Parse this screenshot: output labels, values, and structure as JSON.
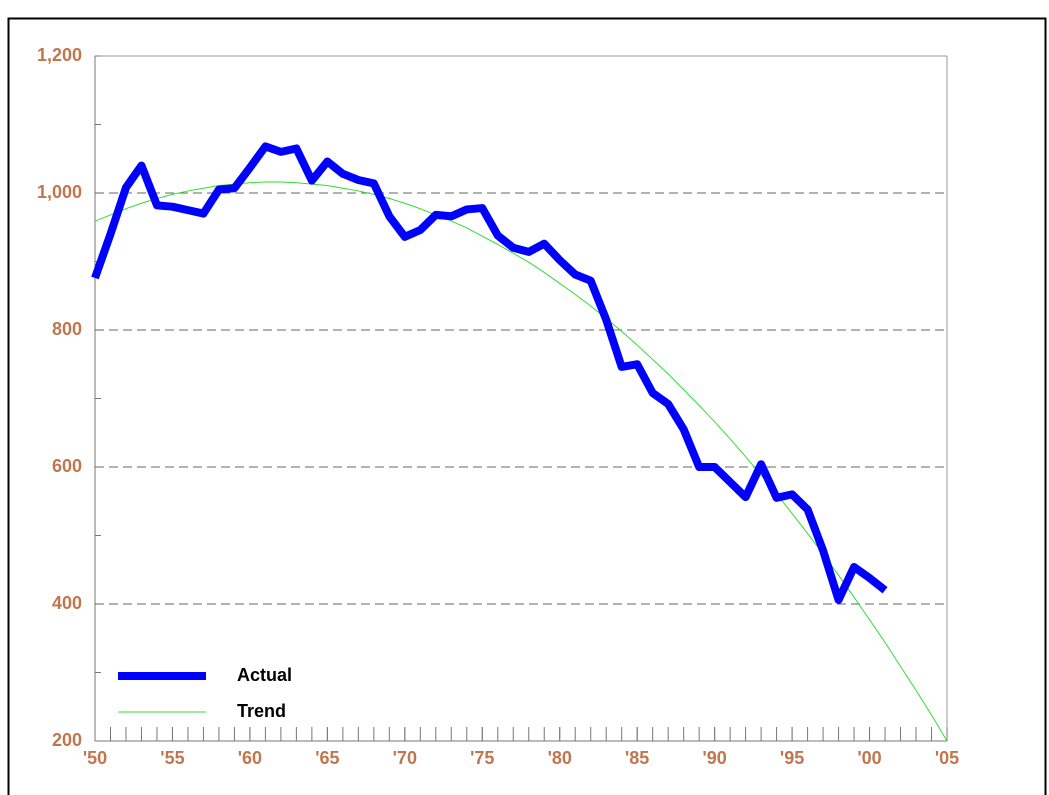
{
  "chart_data": {
    "type": "line",
    "series": [
      {
        "name": "Actual",
        "color": "#0000ff",
        "width": 8,
        "x": [
          1950,
          1951,
          1952,
          1953,
          1954,
          1955,
          1956,
          1957,
          1958,
          1959,
          1960,
          1961,
          1962,
          1963,
          1964,
          1965,
          1966,
          1967,
          1968,
          1969,
          1970,
          1971,
          1972,
          1973,
          1974,
          1975,
          1976,
          1977,
          1978,
          1979,
          1980,
          1981,
          1982,
          1983,
          1984,
          1985,
          1986,
          1987,
          1988,
          1989,
          1990,
          1991,
          1992,
          1993,
          1994,
          1995,
          1996,
          1997,
          1998,
          1999,
          2000,
          2001
        ],
        "values": [
          876,
          940,
          1008,
          1040,
          982,
          980,
          975,
          970,
          1005,
          1007,
          1037,
          1068,
          1060,
          1065,
          1018,
          1046,
          1028,
          1019,
          1014,
          966,
          936,
          946,
          968,
          966,
          976,
          978,
          938,
          920,
          914,
          926,
          902,
          881,
          872,
          815,
          746,
          750,
          708,
          692,
          655,
          600,
          600,
          578,
          556,
          604,
          555,
          560,
          538,
          478,
          406,
          454,
          438,
          420
        ]
      },
      {
        "name": "Trend",
        "color": "#33dd33",
        "width": 1,
        "x": [
          1950,
          1951,
          1952,
          1953,
          1954,
          1955,
          1956,
          1957,
          1958,
          1959,
          1960,
          1961,
          1962,
          1963,
          1964,
          1965,
          1966,
          1967,
          1968,
          1969,
          1970,
          1971,
          1972,
          1973,
          1974,
          1975,
          1976,
          1977,
          1978,
          1979,
          1980,
          1981,
          1982,
          1983,
          1984,
          1985,
          1986,
          1987,
          1988,
          1989,
          1990,
          1991,
          1992,
          1993,
          1994,
          1995,
          1996,
          1997,
          1998,
          1999,
          2000,
          2001,
          2002,
          2003,
          2004,
          2005
        ],
        "values": [
          959,
          968,
          977,
          985,
          992,
          998,
          1003,
          1007,
          1011,
          1013,
          1015,
          1016,
          1016,
          1015,
          1013,
          1011,
          1007,
          1003,
          998,
          992,
          985,
          977,
          968,
          959,
          949,
          937,
          925,
          912,
          899,
          884,
          868,
          852,
          835,
          817,
          798,
          778,
          757,
          736,
          713,
          690,
          666,
          641,
          615,
          588,
          561,
          532,
          503,
          473,
          442,
          410,
          377,
          344,
          309,
          274,
          238,
          200
        ]
      }
    ],
    "xlim": [
      1950,
      2005
    ],
    "xticks": [
      {
        "value": 1950,
        "label": "'50"
      },
      {
        "value": 1955,
        "label": "'55"
      },
      {
        "value": 1960,
        "label": "'60"
      },
      {
        "value": 1965,
        "label": "'65"
      },
      {
        "value": 1970,
        "label": "'70"
      },
      {
        "value": 1975,
        "label": "'75"
      },
      {
        "value": 1980,
        "label": "'80"
      },
      {
        "value": 1985,
        "label": "'85"
      },
      {
        "value": 1990,
        "label": "'90"
      },
      {
        "value": 1995,
        "label": "'95"
      },
      {
        "value": 2000,
        "label": "'00"
      },
      {
        "value": 2005,
        "label": "'05"
      }
    ],
    "ylim": [
      200,
      1200
    ],
    "yticks": [
      200,
      400,
      600,
      800,
      {
        "value": 1000,
        "label": "1,000"
      },
      {
        "value": 1200,
        "label": "1,200"
      }
    ],
    "grid": true,
    "legend": "lower-left"
  }
}
